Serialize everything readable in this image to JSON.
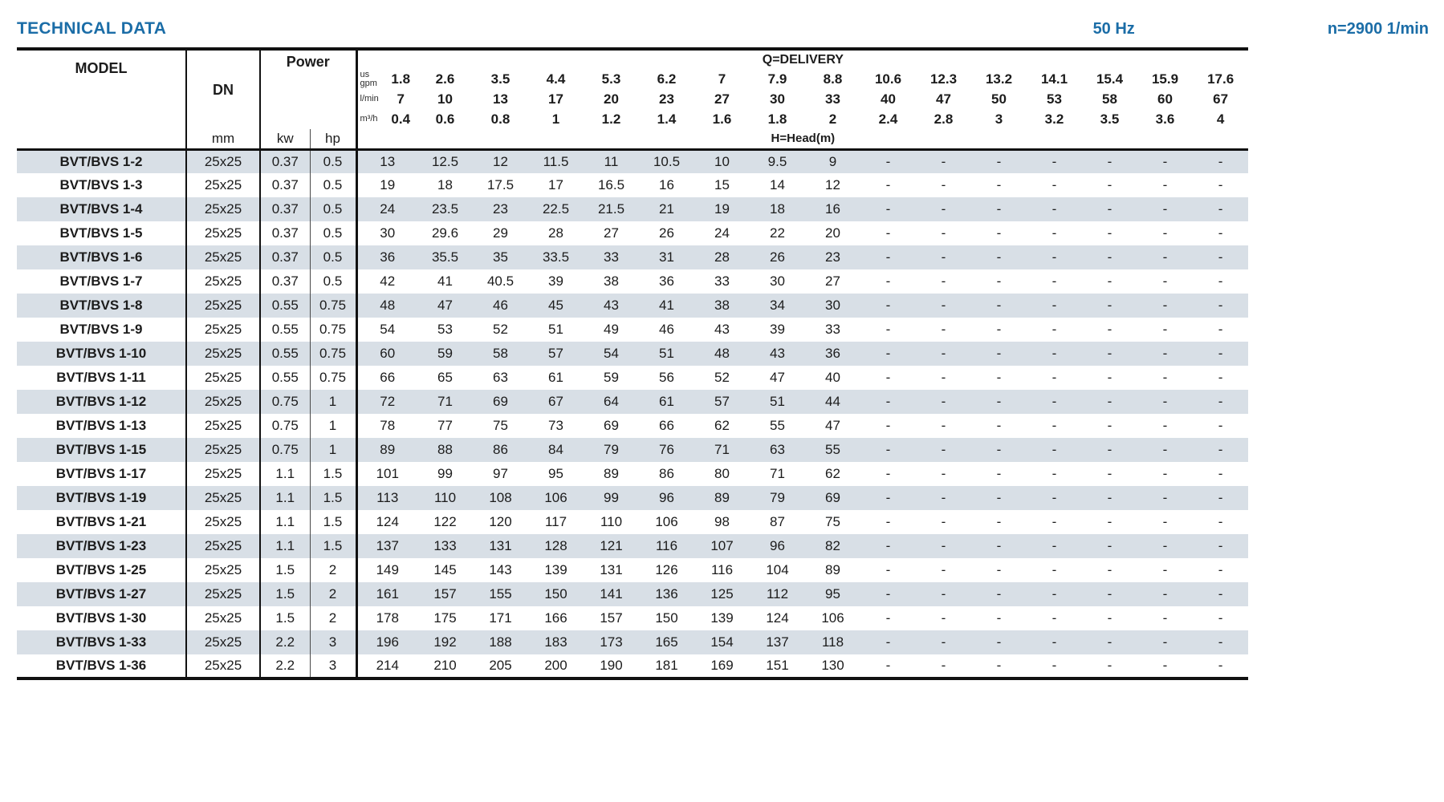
{
  "header": {
    "title": "TECHNICAL DATA",
    "frequency": "50 Hz",
    "speed": "n=2900 1/min"
  },
  "table": {
    "headers": {
      "model": "MODEL",
      "dn": "DN",
      "dn_unit": "mm",
      "power": "Power",
      "kw": "kw",
      "hp": "hp",
      "delivery": "Q=DELIVERY",
      "head": "H=Head(m)"
    },
    "unit_rows": [
      {
        "id": "us-gpm",
        "label": "us gpm",
        "values": [
          "1.8",
          "2.6",
          "3.5",
          "4.4",
          "5.3",
          "6.2",
          "7",
          "7.9",
          "8.8",
          "10.6",
          "12.3",
          "13.2",
          "14.1",
          "15.4",
          "15.9",
          "17.6"
        ]
      },
      {
        "id": "l-min",
        "label": "l/min",
        "values": [
          "7",
          "10",
          "13",
          "17",
          "20",
          "23",
          "27",
          "30",
          "33",
          "40",
          "47",
          "50",
          "53",
          "58",
          "60",
          "67"
        ]
      },
      {
        "id": "m3-h",
        "label": "m³/h",
        "values": [
          "0.4",
          "0.6",
          "0.8",
          "1",
          "1.2",
          "1.4",
          "1.6",
          "1.8",
          "2",
          "2.4",
          "2.8",
          "3",
          "3.2",
          "3.5",
          "3.6",
          "4"
        ]
      }
    ],
    "rows": [
      {
        "model": "BVT/BVS 1-2",
        "dn": "25x25",
        "kw": "0.37",
        "hp": "0.5",
        "head": [
          "13",
          "12.5",
          "12",
          "11.5",
          "11",
          "10.5",
          "10",
          "9.5",
          "9",
          "-",
          "-",
          "-",
          "-",
          "-",
          "-",
          "-"
        ]
      },
      {
        "model": "BVT/BVS 1-3",
        "dn": "25x25",
        "kw": "0.37",
        "hp": "0.5",
        "head": [
          "19",
          "18",
          "17.5",
          "17",
          "16.5",
          "16",
          "15",
          "14",
          "12",
          "-",
          "-",
          "-",
          "-",
          "-",
          "-",
          "-"
        ]
      },
      {
        "model": "BVT/BVS 1-4",
        "dn": "25x25",
        "kw": "0.37",
        "hp": "0.5",
        "head": [
          "24",
          "23.5",
          "23",
          "22.5",
          "21.5",
          "21",
          "19",
          "18",
          "16",
          "-",
          "-",
          "-",
          "-",
          "-",
          "-",
          "-"
        ]
      },
      {
        "model": "BVT/BVS 1-5",
        "dn": "25x25",
        "kw": "0.37",
        "hp": "0.5",
        "head": [
          "30",
          "29.6",
          "29",
          "28",
          "27",
          "26",
          "24",
          "22",
          "20",
          "-",
          "-",
          "-",
          "-",
          "-",
          "-",
          "-"
        ]
      },
      {
        "model": "BVT/BVS 1-6",
        "dn": "25x25",
        "kw": "0.37",
        "hp": "0.5",
        "head": [
          "36",
          "35.5",
          "35",
          "33.5",
          "33",
          "31",
          "28",
          "26",
          "23",
          "-",
          "-",
          "-",
          "-",
          "-",
          "-",
          "-"
        ]
      },
      {
        "model": "BVT/BVS 1-7",
        "dn": "25x25",
        "kw": "0.37",
        "hp": "0.5",
        "head": [
          "42",
          "41",
          "40.5",
          "39",
          "38",
          "36",
          "33",
          "30",
          "27",
          "-",
          "-",
          "-",
          "-",
          "-",
          "-",
          "-"
        ]
      },
      {
        "model": "BVT/BVS 1-8",
        "dn": "25x25",
        "kw": "0.55",
        "hp": "0.75",
        "head": [
          "48",
          "47",
          "46",
          "45",
          "43",
          "41",
          "38",
          "34",
          "30",
          "-",
          "-",
          "-",
          "-",
          "-",
          "-",
          "-"
        ]
      },
      {
        "model": "BVT/BVS 1-9",
        "dn": "25x25",
        "kw": "0.55",
        "hp": "0.75",
        "head": [
          "54",
          "53",
          "52",
          "51",
          "49",
          "46",
          "43",
          "39",
          "33",
          "-",
          "-",
          "-",
          "-",
          "-",
          "-",
          "-"
        ]
      },
      {
        "model": "BVT/BVS 1-10",
        "dn": "25x25",
        "kw": "0.55",
        "hp": "0.75",
        "head": [
          "60",
          "59",
          "58",
          "57",
          "54",
          "51",
          "48",
          "43",
          "36",
          "-",
          "-",
          "-",
          "-",
          "-",
          "-",
          "-"
        ]
      },
      {
        "model": "BVT/BVS 1-11",
        "dn": "25x25",
        "kw": "0.55",
        "hp": "0.75",
        "head": [
          "66",
          "65",
          "63",
          "61",
          "59",
          "56",
          "52",
          "47",
          "40",
          "-",
          "-",
          "-",
          "-",
          "-",
          "-",
          "-"
        ]
      },
      {
        "model": "BVT/BVS 1-12",
        "dn": "25x25",
        "kw": "0.75",
        "hp": "1",
        "head": [
          "72",
          "71",
          "69",
          "67",
          "64",
          "61",
          "57",
          "51",
          "44",
          "-",
          "-",
          "-",
          "-",
          "-",
          "-",
          "-"
        ]
      },
      {
        "model": "BVT/BVS 1-13",
        "dn": "25x25",
        "kw": "0.75",
        "hp": "1",
        "head": [
          "78",
          "77",
          "75",
          "73",
          "69",
          "66",
          "62",
          "55",
          "47",
          "-",
          "-",
          "-",
          "-",
          "-",
          "-",
          "-"
        ]
      },
      {
        "model": "BVT/BVS 1-15",
        "dn": "25x25",
        "kw": "0.75",
        "hp": "1",
        "head": [
          "89",
          "88",
          "86",
          "84",
          "79",
          "76",
          "71",
          "63",
          "55",
          "-",
          "-",
          "-",
          "-",
          "-",
          "-",
          "-"
        ]
      },
      {
        "model": "BVT/BVS 1-17",
        "dn": "25x25",
        "kw": "1.1",
        "hp": "1.5",
        "head": [
          "101",
          "99",
          "97",
          "95",
          "89",
          "86",
          "80",
          "71",
          "62",
          "-",
          "-",
          "-",
          "-",
          "-",
          "-",
          "-"
        ]
      },
      {
        "model": "BVT/BVS 1-19",
        "dn": "25x25",
        "kw": "1.1",
        "hp": "1.5",
        "head": [
          "113",
          "110",
          "108",
          "106",
          "99",
          "96",
          "89",
          "79",
          "69",
          "-",
          "-",
          "-",
          "-",
          "-",
          "-",
          "-"
        ]
      },
      {
        "model": "BVT/BVS 1-21",
        "dn": "25x25",
        "kw": "1.1",
        "hp": "1.5",
        "head": [
          "124",
          "122",
          "120",
          "117",
          "110",
          "106",
          "98",
          "87",
          "75",
          "-",
          "-",
          "-",
          "-",
          "-",
          "-",
          "-"
        ]
      },
      {
        "model": "BVT/BVS 1-23",
        "dn": "25x25",
        "kw": "1.1",
        "hp": "1.5",
        "head": [
          "137",
          "133",
          "131",
          "128",
          "121",
          "116",
          "107",
          "96",
          "82",
          "-",
          "-",
          "-",
          "-",
          "-",
          "-",
          "-"
        ]
      },
      {
        "model": "BVT/BVS 1-25",
        "dn": "25x25",
        "kw": "1.5",
        "hp": "2",
        "head": [
          "149",
          "145",
          "143",
          "139",
          "131",
          "126",
          "116",
          "104",
          "89",
          "-",
          "-",
          "-",
          "-",
          "-",
          "-",
          "-"
        ]
      },
      {
        "model": "BVT/BVS 1-27",
        "dn": "25x25",
        "kw": "1.5",
        "hp": "2",
        "head": [
          "161",
          "157",
          "155",
          "150",
          "141",
          "136",
          "125",
          "112",
          "95",
          "-",
          "-",
          "-",
          "-",
          "-",
          "-",
          "-"
        ]
      },
      {
        "model": "BVT/BVS 1-30",
        "dn": "25x25",
        "kw": "1.5",
        "hp": "2",
        "head": [
          "178",
          "175",
          "171",
          "166",
          "157",
          "150",
          "139",
          "124",
          "106",
          "-",
          "-",
          "-",
          "-",
          "-",
          "-",
          "-"
        ]
      },
      {
        "model": "BVT/BVS 1-33",
        "dn": "25x25",
        "kw": "2.2",
        "hp": "3",
        "head": [
          "196",
          "192",
          "188",
          "183",
          "173",
          "165",
          "154",
          "137",
          "118",
          "-",
          "-",
          "-",
          "-",
          "-",
          "-",
          "-"
        ]
      },
      {
        "model": "BVT/BVS 1-36",
        "dn": "25x25",
        "kw": "2.2",
        "hp": "3",
        "head": [
          "214",
          "210",
          "205",
          "200",
          "190",
          "181",
          "169",
          "151",
          "130",
          "-",
          "-",
          "-",
          "-",
          "-",
          "-",
          "-"
        ]
      }
    ]
  }
}
